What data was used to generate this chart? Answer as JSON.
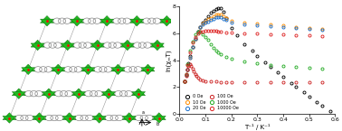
{
  "xlabel": "T⁻¹ / K⁻¹",
  "ylabel": "ln(χₘT)",
  "xlim": [
    0.0,
    0.6
  ],
  "ylim": [
    0,
    8
  ],
  "xticks": [
    0.0,
    0.1,
    0.2,
    0.3,
    0.4,
    0.5,
    0.6
  ],
  "yticks": [
    0,
    2,
    4,
    6,
    8
  ],
  "series": {
    "0Oe": {
      "color": "black",
      "T_inv": [
        0.02,
        0.025,
        0.03,
        0.035,
        0.04,
        0.05,
        0.06,
        0.07,
        0.08,
        0.09,
        0.1,
        0.11,
        0.12,
        0.13,
        0.14,
        0.15,
        0.16,
        0.17,
        0.18,
        0.2,
        0.22,
        0.25,
        0.28,
        0.3,
        0.33,
        0.35,
        0.38,
        0.4,
        0.43,
        0.45,
        0.48,
        0.5,
        0.53,
        0.55,
        0.58
      ],
      "lnXT": [
        2.4,
        2.9,
        3.3,
        3.8,
        4.3,
        5.0,
        5.6,
        6.1,
        6.5,
        6.8,
        7.0,
        7.3,
        7.55,
        7.7,
        7.82,
        7.9,
        7.85,
        7.6,
        7.15,
        6.4,
        5.85,
        5.2,
        4.7,
        4.3,
        3.85,
        3.5,
        3.1,
        2.75,
        2.3,
        2.0,
        1.6,
        1.3,
        0.9,
        0.6,
        0.2
      ]
    },
    "10Oe": {
      "color": "#ff8c00",
      "T_inv": [
        0.02,
        0.025,
        0.03,
        0.04,
        0.05,
        0.06,
        0.07,
        0.08,
        0.09,
        0.1,
        0.11,
        0.12,
        0.13,
        0.14,
        0.15,
        0.16,
        0.17,
        0.18,
        0.2,
        0.25,
        0.3,
        0.35,
        0.4,
        0.45,
        0.5,
        0.55
      ],
      "lnXT": [
        2.4,
        2.9,
        3.3,
        4.2,
        5.0,
        5.6,
        6.1,
        6.5,
        6.75,
        6.9,
        7.05,
        7.15,
        7.3,
        7.38,
        7.42,
        7.4,
        7.3,
        7.15,
        6.95,
        6.82,
        6.72,
        6.65,
        6.58,
        6.5,
        6.42,
        6.35
      ]
    },
    "20Oe": {
      "color": "#1a6fcc",
      "T_inv": [
        0.02,
        0.025,
        0.03,
        0.04,
        0.05,
        0.06,
        0.07,
        0.08,
        0.09,
        0.1,
        0.11,
        0.12,
        0.13,
        0.14,
        0.15,
        0.16,
        0.17,
        0.18,
        0.2,
        0.25,
        0.3,
        0.35,
        0.4,
        0.45,
        0.5,
        0.55
      ],
      "lnXT": [
        2.4,
        2.9,
        3.3,
        4.2,
        5.0,
        5.6,
        6.1,
        6.45,
        6.65,
        6.78,
        6.9,
        7.0,
        7.1,
        7.18,
        7.22,
        7.2,
        7.1,
        6.98,
        6.82,
        6.7,
        6.62,
        6.55,
        6.48,
        6.4,
        6.33,
        6.26
      ]
    },
    "100Oe": {
      "color": "#cc2222",
      "T_inv": [
        0.02,
        0.025,
        0.03,
        0.035,
        0.04,
        0.045,
        0.05,
        0.055,
        0.06,
        0.065,
        0.07,
        0.08,
        0.09,
        0.1,
        0.12,
        0.14,
        0.16,
        0.18,
        0.2,
        0.25,
        0.3,
        0.35,
        0.4,
        0.45,
        0.5,
        0.55
      ],
      "lnXT": [
        2.4,
        2.85,
        3.3,
        3.6,
        3.7,
        3.6,
        3.4,
        3.2,
        3.0,
        2.85,
        2.7,
        2.55,
        2.48,
        2.45,
        2.42,
        2.4,
        2.38,
        2.37,
        2.36,
        2.35,
        2.35,
        2.35,
        2.35,
        2.35,
        2.35,
        2.35
      ]
    },
    "1000Oe": {
      "color": "#22aa22",
      "T_inv": [
        0.02,
        0.025,
        0.03,
        0.04,
        0.05,
        0.06,
        0.07,
        0.08,
        0.09,
        0.1,
        0.11,
        0.12,
        0.13,
        0.14,
        0.15,
        0.16,
        0.18,
        0.2,
        0.25,
        0.3,
        0.35,
        0.4,
        0.45,
        0.5,
        0.55
      ],
      "lnXT": [
        2.4,
        3.0,
        3.7,
        4.7,
        5.4,
        5.9,
        6.1,
        6.1,
        5.95,
        5.75,
        5.5,
        5.2,
        4.95,
        4.75,
        4.58,
        4.45,
        4.25,
        4.1,
        3.88,
        3.75,
        3.65,
        3.55,
        3.48,
        3.42,
        3.38
      ]
    },
    "10000Oe": {
      "color": "#dd2222",
      "T_inv": [
        0.02,
        0.025,
        0.03,
        0.04,
        0.05,
        0.06,
        0.07,
        0.08,
        0.09,
        0.1,
        0.11,
        0.12,
        0.13,
        0.14,
        0.15,
        0.16,
        0.18,
        0.2,
        0.25,
        0.3,
        0.35,
        0.4,
        0.45,
        0.5,
        0.55
      ],
      "lnXT": [
        2.4,
        3.0,
        3.65,
        4.6,
        5.3,
        5.75,
        6.0,
        6.1,
        6.15,
        6.2,
        6.22,
        6.22,
        6.2,
        6.18,
        6.15,
        6.12,
        6.08,
        6.05,
        6.0,
        5.97,
        5.93,
        5.9,
        5.87,
        5.85,
        5.82
      ]
    }
  },
  "struct_bg": "#ffffff",
  "oct_color": "#22bb22",
  "oct_edge": "#006600",
  "ring_color": "#aaaaaa",
  "arrow_color": "#333333"
}
